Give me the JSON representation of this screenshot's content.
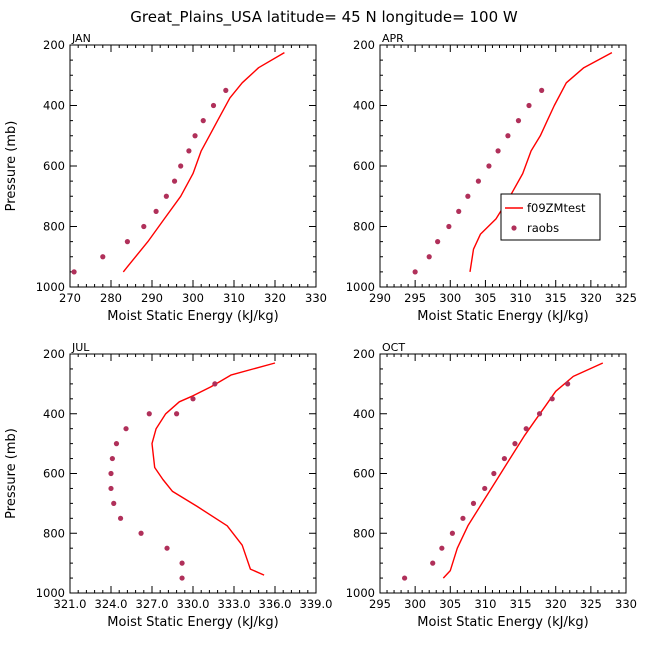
{
  "chart_data": {
    "title": "Great_Plains_USA  latitude= 45 N longitude= 100 W",
    "colors": {
      "model": "#ff0000",
      "obs": "#b0305a",
      "axis": "#000000"
    },
    "legend": {
      "model": "f09ZMtest",
      "obs": "raobs",
      "placement": "APR panel, lower-right"
    },
    "panels": [
      {
        "type": "line",
        "name": "JAN",
        "xlabel": "Moist Static Energy (kJ/kg)",
        "ylabel": "Pressure (mb)",
        "xlim": [
          270,
          330
        ],
        "ylim": [
          1000,
          200
        ],
        "xticks": [
          270,
          280,
          290,
          300,
          310,
          320,
          330
        ],
        "xtick_labels": [
          "270",
          "280",
          "290",
          "300",
          "310",
          "320",
          "330"
        ],
        "yticks": [
          200,
          400,
          600,
          800,
          1000
        ],
        "ytick_labels": [
          "200",
          "400",
          "600",
          "800",
          "1000"
        ],
        "model": {
          "x": [
            283,
            284.5,
            289,
            293,
            297,
            300,
            302,
            304,
            306,
            309,
            312,
            316,
            322.3
          ],
          "y": [
            950,
            925,
            850,
            775,
            700,
            625,
            550,
            500,
            450,
            375,
            325,
            275,
            225
          ]
        },
        "obs": {
          "x": [
            271,
            278,
            284,
            288,
            291,
            293.5,
            295.5,
            297,
            299,
            300.5,
            302.5,
            305,
            308
          ],
          "y": [
            950,
            900,
            850,
            800,
            750,
            700,
            650,
            600,
            550,
            500,
            450,
            400,
            350
          ]
        }
      },
      {
        "type": "line",
        "name": "APR",
        "xlabel": "Moist Static Energy (kJ/kg)",
        "ylabel": "",
        "xlim": [
          290,
          325
        ],
        "ylim": [
          1000,
          200
        ],
        "xticks": [
          290,
          295,
          300,
          305,
          310,
          315,
          320,
          325
        ],
        "xtick_labels": [
          "290",
          "295",
          "300",
          "305",
          "310",
          "315",
          "320",
          "325"
        ],
        "yticks": [
          200,
          400,
          600,
          800,
          1000
        ],
        "ytick_labels": [
          "200",
          "400",
          "600",
          "800",
          "1000"
        ],
        "model": {
          "x": [
            302.8,
            303.3,
            304.3,
            306.5,
            308.5,
            310.3,
            311.5,
            312.8,
            313.8,
            314.8,
            316.5,
            319,
            323
          ],
          "y": [
            950,
            875,
            825,
            775,
            700,
            625,
            550,
            500,
            450,
            400,
            325,
            275,
            225
          ]
        },
        "obs": {
          "x": [
            295,
            297,
            298.2,
            299.8,
            301.2,
            302.5,
            304,
            305.5,
            306.8,
            308.2,
            309.7,
            311.2,
            313
          ],
          "y": [
            950,
            900,
            850,
            800,
            750,
            700,
            650,
            600,
            550,
            500,
            450,
            400,
            350
          ]
        }
      },
      {
        "type": "line",
        "name": "JUL",
        "xlabel": "Moist Static Energy (kJ/kg)",
        "ylabel": "Pressure (mb)",
        "xlim": [
          321,
          339
        ],
        "ylim": [
          1000,
          200
        ],
        "xticks": [
          321,
          324,
          327,
          330,
          333,
          336,
          339
        ],
        "xtick_labels": [
          "321.0",
          "324.0",
          "327.0",
          "330.0",
          "333.0",
          "336.0",
          "339.0"
        ],
        "yticks": [
          200,
          400,
          600,
          800,
          1000
        ],
        "ytick_labels": [
          "200",
          "400",
          "600",
          "800",
          "1000"
        ],
        "model": {
          "x": [
            335.2,
            334.2,
            333.6,
            332.5,
            330.3,
            328.5,
            327.8,
            327.2,
            327.0,
            327.3,
            328,
            329,
            330,
            331.3,
            332.8,
            336
          ],
          "y": [
            940,
            920,
            840,
            775,
            710,
            660,
            620,
            580,
            500,
            450,
            400,
            360,
            340,
            310,
            270,
            230
          ]
        },
        "obs": {
          "x": [
            329.2,
            329.2,
            328.1,
            326.2,
            324.7,
            324.2,
            324.0,
            324.0,
            324.1,
            324.4,
            325.1,
            326.8,
            328.8,
            330.0,
            331.6
          ],
          "y": [
            950,
            900,
            850,
            800,
            750,
            700,
            650,
            600,
            550,
            500,
            450,
            400,
            400,
            350,
            300
          ]
        }
      },
      {
        "type": "line",
        "name": "OCT",
        "xlabel": "Moist Static Energy (kJ/kg)",
        "ylabel": "",
        "xlim": [
          295,
          330
        ],
        "ylim": [
          1000,
          200
        ],
        "xticks": [
          295,
          300,
          305,
          310,
          315,
          320,
          325,
          330
        ],
        "xtick_labels": [
          "295",
          "300",
          "305",
          "310",
          "315",
          "320",
          "325",
          "330"
        ],
        "yticks": [
          200,
          400,
          600,
          800,
          1000
        ],
        "ytick_labels": [
          "200",
          "400",
          "600",
          "800",
          "1000"
        ],
        "model": {
          "x": [
            304,
            305,
            306,
            307.5,
            309.5,
            311.5,
            313.5,
            315.5,
            317,
            318.5,
            320,
            322.5,
            326.7
          ],
          "y": [
            950,
            925,
            850,
            775,
            700,
            625,
            550,
            475,
            425,
            375,
            325,
            275,
            230
          ]
        },
        "obs": {
          "x": [
            298.5,
            302.5,
            303.8,
            305.3,
            306.8,
            308.3,
            309.9,
            311.2,
            312.7,
            314.2,
            315.8,
            317.7,
            319.5,
            321.7
          ],
          "y": [
            950,
            900,
            850,
            800,
            750,
            700,
            650,
            600,
            550,
            500,
            450,
            400,
            350,
            300
          ]
        }
      }
    ]
  }
}
